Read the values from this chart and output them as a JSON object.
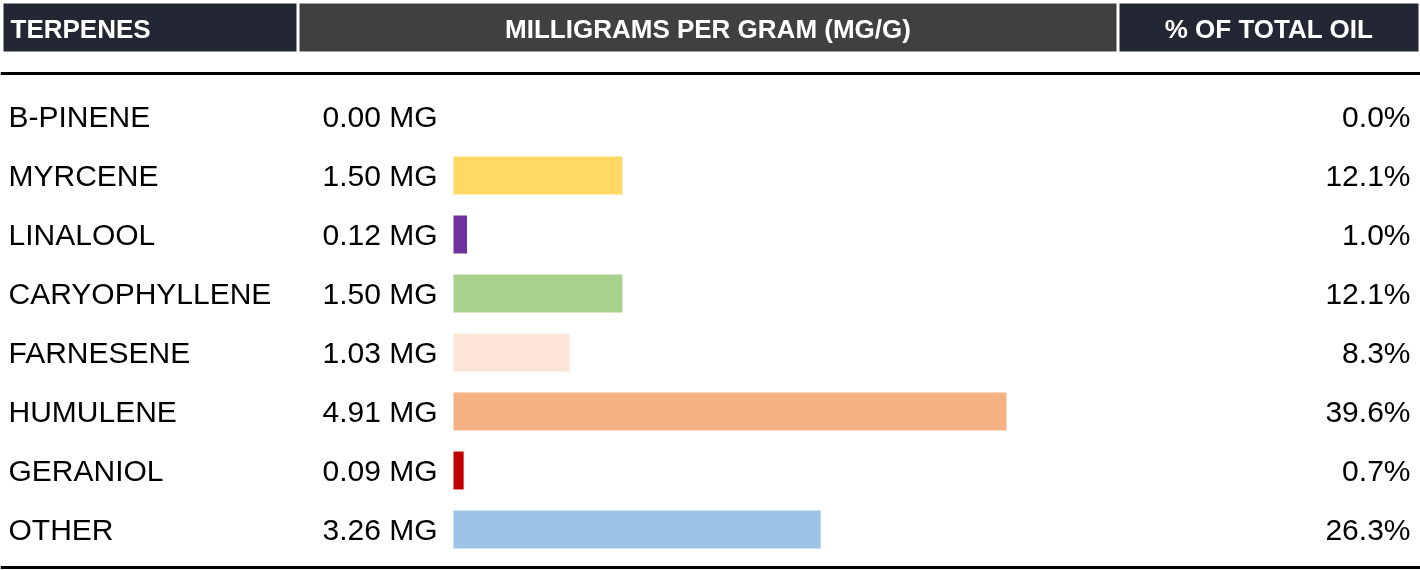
{
  "chart_data": {
    "type": "bar",
    "orientation": "horizontal",
    "ylabel": "TERPENES",
    "xlabel": "MILLIGRAMS PER GRAM (MG/G)",
    "categories": [
      "B-PINENE",
      "MYRCENE",
      "LINALOOL",
      "CARYOPHYLLENE",
      "FARNESENE",
      "HUMULENE",
      "GERANIOL",
      "OTHER"
    ],
    "values": [
      0.0,
      1.5,
      0.12,
      1.5,
      1.03,
      4.91,
      0.09,
      3.26
    ],
    "colors": [
      null,
      "#ffd966",
      "#7030a0",
      "#a9d18e",
      "#fbe5d6",
      "#f4b183",
      "#c00000",
      "#9dc3e6"
    ],
    "value_labels": [
      "0.00 MG",
      "1.50 MG",
      "0.12 MG",
      "1.50 MG",
      "1.03 MG",
      "4.91 MG",
      "0.09 MG",
      "3.26 MG"
    ],
    "annotations": [
      "% OF TOTAL OIL",
      "0.0%",
      "12.1%",
      "1.0%",
      "12.1%",
      "8.3%",
      "39.6%",
      "0.7%",
      "26.3%"
    ]
  }
}
